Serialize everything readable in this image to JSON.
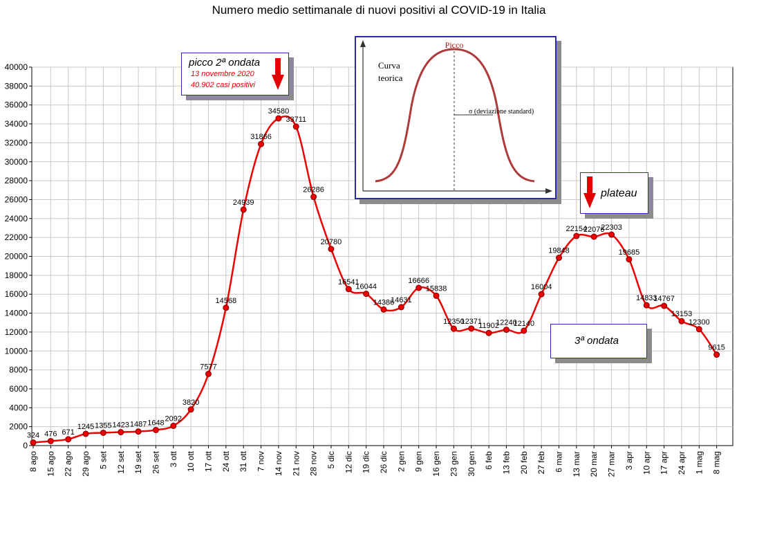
{
  "chart_data": {
    "type": "line",
    "title": "Numero medio settimanale di nuovi positivi al COVID-19 in Italia",
    "xlabel": "",
    "ylabel": "",
    "ylim": [
      0,
      40000
    ],
    "yticks": [
      0,
      2000,
      4000,
      6000,
      8000,
      10000,
      12000,
      14000,
      16000,
      18000,
      20000,
      22000,
      24000,
      26000,
      28000,
      30000,
      32000,
      34000,
      36000,
      38000,
      40000
    ],
    "grid": true,
    "categories": [
      "8 ago",
      "15 ago",
      "22 ago",
      "29 ago",
      "5 set",
      "12 set",
      "19 set",
      "26 set",
      "3 ott",
      "10 ott",
      "17 ott",
      "24 ott",
      "31 ott",
      "7 nov",
      "14 nov",
      "21 nov",
      "28 nov",
      "5 dic",
      "12 dic",
      "19 dic",
      "26 dic",
      "2 gen",
      "9 gen",
      "16 gen",
      "23 gen",
      "30 gen",
      "6 feb",
      "13 feb",
      "20 feb",
      "27 feb",
      "6 mar",
      "13 mar",
      "20 mar",
      "27 mar",
      "3 apr",
      "10 apr",
      "17 apr",
      "24 apr",
      "1 mag",
      "8 mag"
    ],
    "series": [
      {
        "color": "#ee0000",
        "values": [
          324,
          476,
          671,
          1245,
          1355,
          1423,
          1487,
          1648,
          2092,
          3820,
          7577,
          14568,
          24939,
          31866,
          34580,
          33711,
          26286,
          20780,
          16541,
          16044,
          14386,
          14631,
          16666,
          15838,
          12350,
          12371,
          11902,
          12240,
          12140,
          16004,
          19848,
          22154,
          22076,
          22303,
          19685,
          14833,
          14767,
          13153,
          12300,
          9615
        ]
      }
    ],
    "data_labels": [
      "324",
      "476",
      "671",
      "1245",
      "1355",
      "1423",
      "1487",
      "1648",
      "2092",
      "3820",
      "7577",
      "14568",
      "24939",
      "31866",
      "34580",
      "33711",
      "26286",
      "20780",
      "16541",
      "16044",
      "14386",
      "14631",
      "16666",
      "15838",
      "12350",
      "12371",
      "11902",
      "12240",
      "12140",
      "16004",
      "19848",
      "22154",
      "22076",
      "22303",
      "19685",
      "14833",
      "14767",
      "13153",
      "12300",
      "9615"
    ],
    "annotations": {
      "peak": {
        "title": "picco 2ª ondata",
        "date": "13 novembre 2020",
        "cases": "40.902 casi positivi"
      },
      "plateau": "plateau",
      "third_wave": "3ª ondata",
      "inset": {
        "peak_label": "Picco",
        "curve_label_1": "Curva",
        "curve_label_2": "teorica",
        "sigma_label": "σ  (deviazione standard)"
      }
    }
  }
}
